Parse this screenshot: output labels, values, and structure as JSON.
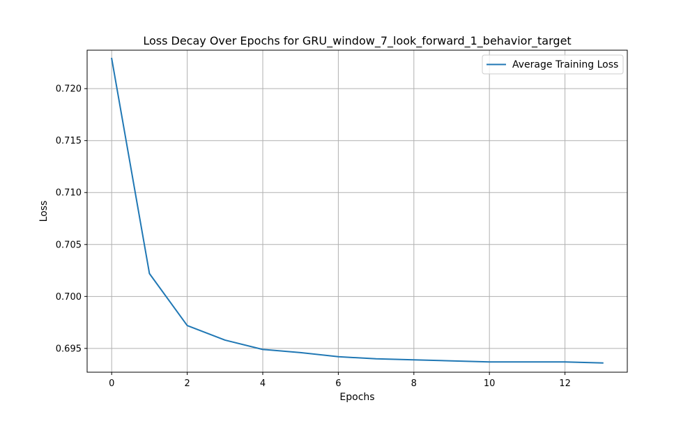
{
  "chart_data": {
    "type": "line",
    "title": "Loss Decay Over Epochs for GRU_window_7_look_forward_1_behavior_target",
    "xlabel": "Epochs",
    "ylabel": "Loss",
    "xlim": [
      -0.65,
      13.65
    ],
    "ylim": [
      0.69271,
      0.7237
    ],
    "x_ticks": [
      0,
      2,
      4,
      6,
      8,
      10,
      12
    ],
    "x_tick_labels": [
      "0",
      "2",
      "4",
      "6",
      "8",
      "10",
      "12"
    ],
    "y_ticks": [
      0.695,
      0.7,
      0.705,
      0.71,
      0.715,
      0.72
    ],
    "y_tick_labels": [
      "0.695",
      "0.700",
      "0.705",
      "0.710",
      "0.715",
      "0.720"
    ],
    "grid": true,
    "legend_position": "upper right",
    "x": [
      0,
      1,
      2,
      3,
      4,
      5,
      6,
      7,
      8,
      9,
      10,
      11,
      12,
      13
    ],
    "series": [
      {
        "name": "Average Training Loss",
        "color": "#1f77b4",
        "values": [
          0.7229,
          0.7022,
          0.6972,
          0.6958,
          0.6949,
          0.6946,
          0.6942,
          0.694,
          0.6939,
          0.6938,
          0.6937,
          0.6937,
          0.6937,
          0.6936
        ]
      }
    ]
  }
}
